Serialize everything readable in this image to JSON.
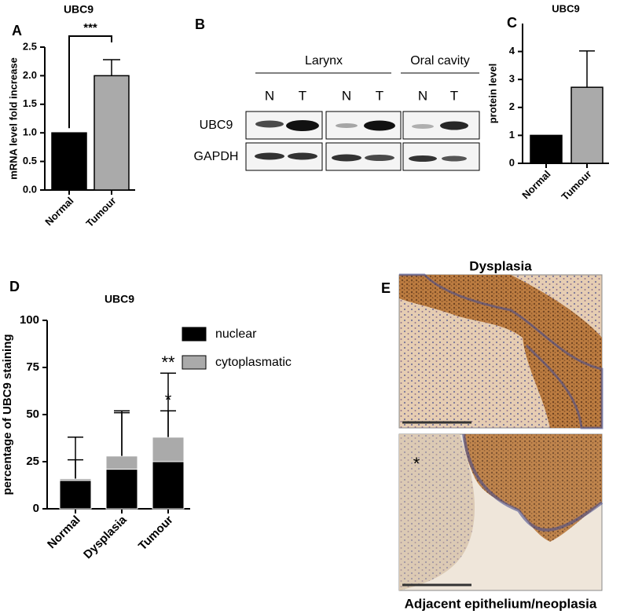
{
  "chart_data": [
    {
      "type": "bar",
      "panel": "A",
      "title": "UBC9",
      "y_label": "mRNA level fold increase",
      "categories": [
        "Normal",
        "Tumour"
      ],
      "values": [
        1,
        2
      ],
      "errors": [
        null,
        0.28
      ],
      "colors": [
        "#000000",
        "#aaaaaa"
      ],
      "ylim": [
        0,
        2.5
      ],
      "yticks": [
        {
          "value": 0,
          "label": "0.0"
        },
        0.5,
        {
          "value": 1,
          "label": "1.0"
        },
        1.5,
        {
          "value": 2,
          "label": "2.0"
        },
        2.5
      ],
      "annotations": [
        {
          "text": "***"
        }
      ]
    },
    {
      "type": "bar",
      "panel": "C",
      "title": "UBC9",
      "y_label": "protein level",
      "categories": [
        "Normal",
        "Tumour"
      ],
      "values": [
        1,
        2.72
      ],
      "errors": [
        null,
        1.3
      ],
      "colors": [
        "#000000",
        "#aaaaaa"
      ],
      "ylim": [
        0,
        5
      ],
      "yticks": [
        0,
        1,
        2,
        3,
        4
      ]
    },
    {
      "type": "stacked_bar",
      "panel": "D",
      "title": "UBC9",
      "y_label": "percentage of UBC9 staining",
      "categories": [
        "Normal",
        "Dysplasia",
        "Tumour"
      ],
      "series": [
        {
          "name": "nuclear",
          "color": "#000000",
          "values": [
            15,
            21,
            25
          ],
          "errors": [
            11,
            30,
            27
          ]
        },
        {
          "name": "cytoplasmatic",
          "color": "#aaaaaa",
          "values": [
            1,
            7,
            13
          ],
          "errors": [
            22,
            24,
            34
          ]
        }
      ],
      "ylim": [
        0,
        100
      ],
      "yticks": [
        0,
        25,
        50,
        75,
        100
      ],
      "legend": "right",
      "annotations": [
        {
          "text": "*"
        },
        {
          "text": "**"
        }
      ]
    }
  ],
  "blot": {
    "panel": "B",
    "groups": [
      "Larynx",
      "Oral cavity"
    ],
    "lanes": [
      "N",
      "T",
      "N",
      "T",
      "N",
      "T"
    ],
    "rows": [
      "UBC9",
      "GAPDH"
    ]
  },
  "histology": {
    "panel": "E",
    "title": "Dysplasia",
    "caption": "Adjacent epithelium/neoplasia",
    "marker": "*"
  }
}
